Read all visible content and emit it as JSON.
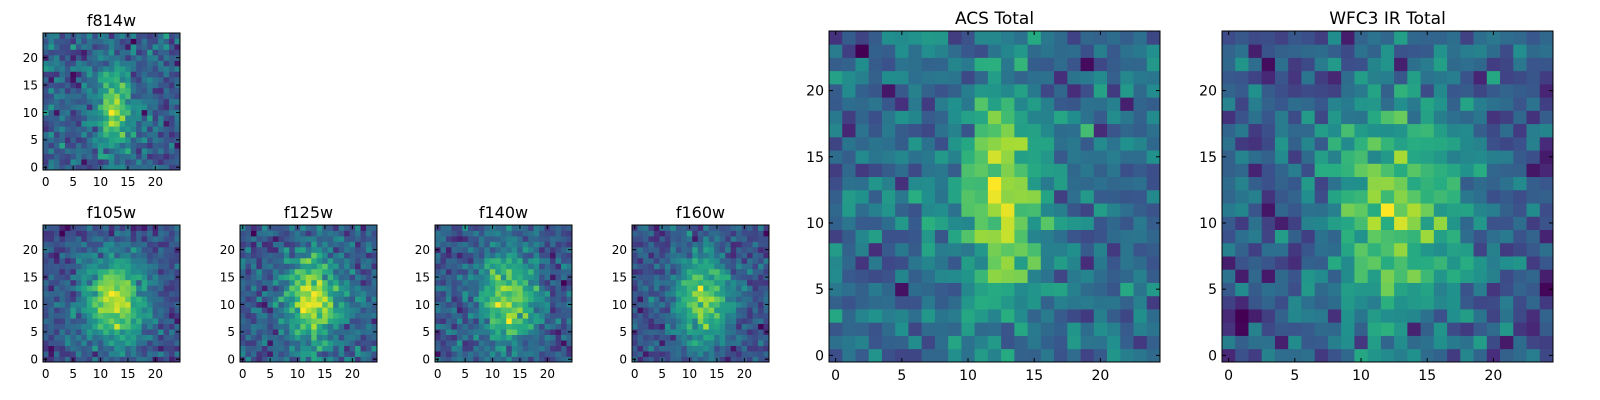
{
  "chart_data": [
    {
      "type": "heatmap",
      "title": "f814w",
      "size": 25,
      "source": {
        "cx": 12.5,
        "cy": 11,
        "sx": 2.2,
        "sy": 5.0,
        "amp": 1.0,
        "noise": 0.55,
        "seed": 11
      },
      "xticks": [
        0,
        5,
        10,
        15,
        20
      ],
      "yticks": [
        0,
        5,
        10,
        15,
        20
      ],
      "xlim": [
        -0.5,
        24.5
      ],
      "ylim": [
        -0.5,
        24.5
      ],
      "colormap": "viridis"
    },
    {
      "type": "heatmap",
      "title": "f105w",
      "size": 25,
      "source": {
        "cx": 12.5,
        "cy": 11,
        "sx": 4.0,
        "sy": 5.5,
        "amp": 0.95,
        "noise": 0.35,
        "seed": 23
      },
      "xticks": [
        0,
        5,
        10,
        15,
        20
      ],
      "yticks": [
        0,
        5,
        10,
        15,
        20
      ],
      "xlim": [
        -0.5,
        24.5
      ],
      "ylim": [
        -0.5,
        24.5
      ],
      "colormap": "viridis"
    },
    {
      "type": "heatmap",
      "title": "f125w",
      "size": 25,
      "source": {
        "cx": 13,
        "cy": 11,
        "sx": 3.5,
        "sy": 6.0,
        "amp": 0.9,
        "noise": 0.45,
        "seed": 37
      },
      "xticks": [
        0,
        5,
        10,
        15,
        20
      ],
      "yticks": [
        0,
        5,
        10,
        15,
        20
      ],
      "xlim": [
        -0.5,
        24.5
      ],
      "ylim": [
        -0.5,
        24.5
      ],
      "colormap": "viridis"
    },
    {
      "type": "heatmap",
      "title": "f140w",
      "size": 25,
      "source": {
        "cx": 13,
        "cy": 11,
        "sx": 3.5,
        "sy": 6.0,
        "amp": 0.9,
        "noise": 0.45,
        "seed": 41
      },
      "xticks": [
        0,
        5,
        10,
        15,
        20
      ],
      "yticks": [
        0,
        5,
        10,
        15,
        20
      ],
      "xlim": [
        -0.5,
        24.5
      ],
      "ylim": [
        -0.5,
        24.5
      ],
      "colormap": "viridis"
    },
    {
      "type": "heatmap",
      "title": "f160w",
      "size": 25,
      "source": {
        "cx": 12.5,
        "cy": 11,
        "sx": 3.5,
        "sy": 6.0,
        "amp": 0.95,
        "noise": 0.45,
        "seed": 53
      },
      "xticks": [
        0,
        5,
        10,
        15,
        20
      ],
      "yticks": [
        0,
        5,
        10,
        15,
        20
      ],
      "xlim": [
        -0.5,
        24.5
      ],
      "ylim": [
        -0.5,
        24.5
      ],
      "colormap": "viridis"
    },
    {
      "type": "heatmap",
      "title": "ACS Total",
      "size": 25,
      "source": {
        "cx": 12.5,
        "cy": 12,
        "sx": 2.2,
        "sy": 6.0,
        "amp": 1.0,
        "noise": 0.55,
        "seed": 67
      },
      "xticks": [
        0,
        5,
        10,
        15,
        20
      ],
      "yticks": [
        0,
        5,
        10,
        15,
        20
      ],
      "xlim": [
        -0.5,
        24.5
      ],
      "ylim": [
        -0.5,
        24.5
      ],
      "colormap": "viridis"
    },
    {
      "type": "heatmap",
      "title": "WFC3 IR Total",
      "size": 25,
      "source": {
        "cx": 12.5,
        "cy": 11,
        "sx": 3.5,
        "sy": 6.0,
        "amp": 0.85,
        "noise": 0.5,
        "seed": 79
      },
      "xticks": [
        0,
        5,
        10,
        15,
        20
      ],
      "yticks": [
        0,
        5,
        10,
        15,
        20
      ],
      "xlim": [
        -0.5,
        24.5
      ],
      "ylim": [
        -0.5,
        24.5
      ],
      "colormap": "viridis"
    }
  ]
}
